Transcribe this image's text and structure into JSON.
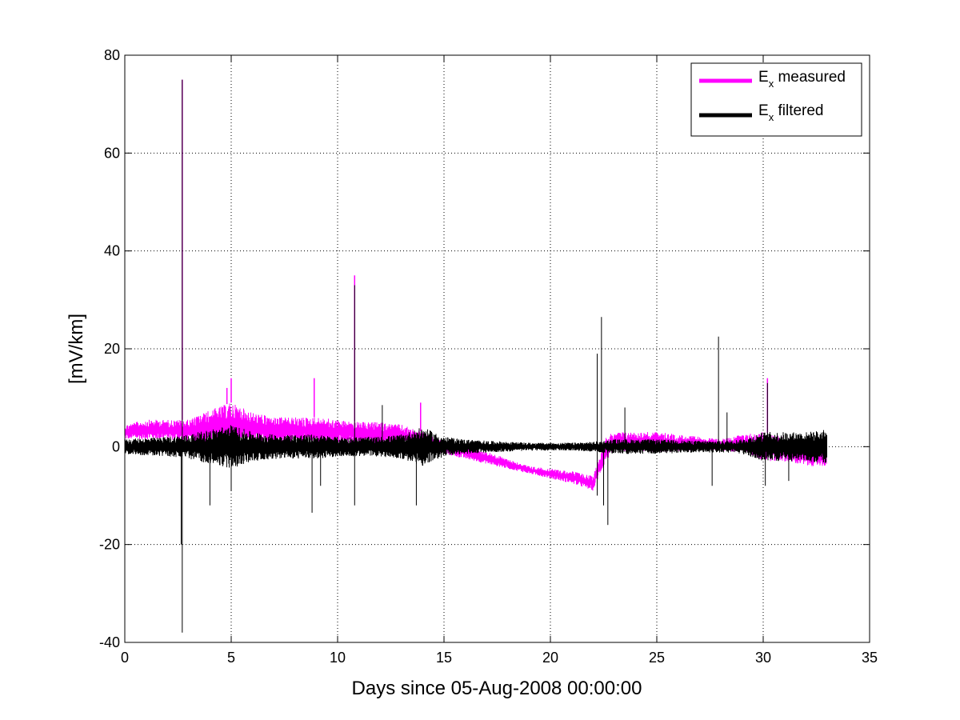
{
  "chart_data": {
    "type": "line",
    "title": "",
    "xlabel": "Days since 05-Aug-2008 00:00:00",
    "ylabel": "[mV/km]",
    "xlim": [
      0,
      35
    ],
    "ylim": [
      -40,
      80
    ],
    "x_ticks": [
      0,
      5,
      10,
      15,
      20,
      25,
      30,
      35
    ],
    "y_ticks": [
      -40,
      -20,
      0,
      20,
      40,
      60,
      80
    ],
    "x_tick_labels": [
      "0",
      "5",
      "10",
      "15",
      "20",
      "25",
      "30",
      "35"
    ],
    "y_tick_labels": [
      "-40",
      "-20",
      "0",
      "20",
      "40",
      "60",
      "80"
    ],
    "grid": true,
    "legend_position": "top-right",
    "colors": {
      "measured": "#ff00ff",
      "filtered": "#000000",
      "grid": "#000000"
    },
    "series": [
      {
        "legend_main": "E",
        "legend_sub": "x",
        "legend_rest": " measured",
        "color": "#ff00ff",
        "x": [
          0,
          1,
          2,
          3,
          4,
          5,
          6,
          7,
          8,
          9,
          10,
          11,
          12,
          13,
          14,
          15,
          16,
          17,
          18,
          19,
          20,
          21,
          22,
          22.6,
          23,
          24,
          25,
          26,
          27,
          28,
          29,
          30,
          31,
          32,
          33
        ],
        "envelope_min": [
          1.5,
          1.5,
          1.5,
          1.0,
          0.5,
          0.5,
          0.5,
          0.5,
          0.5,
          0.5,
          0.5,
          0.5,
          0,
          0,
          -1,
          -1.5,
          -2.5,
          -3.5,
          -4.5,
          -5.5,
          -6.5,
          -7.5,
          -9,
          -3,
          -1,
          -1,
          -1,
          -1,
          -0.5,
          -1,
          -1,
          -3,
          -3,
          -4,
          -4
        ],
        "envelope_max": [
          4.5,
          5.5,
          5.5,
          5.5,
          7.5,
          9,
          7,
          6,
          6,
          6,
          5.5,
          5,
          5,
          4.5,
          3,
          1,
          0,
          -1,
          -2.5,
          -4,
          -4.5,
          -5,
          -6,
          2,
          3,
          3,
          3,
          2.5,
          2,
          1.5,
          2.5,
          3,
          2,
          1,
          1
        ],
        "spikes": [
          [
            2.7,
            75
          ],
          [
            4.8,
            12
          ],
          [
            5.0,
            14
          ],
          [
            8.9,
            14
          ],
          [
            10.8,
            35
          ],
          [
            13.9,
            9
          ],
          [
            30.2,
            14
          ]
        ]
      },
      {
        "legend_main": "E",
        "legend_sub": "x",
        "legend_rest": " filtered",
        "color": "#000000",
        "x": [
          0,
          1,
          2,
          3,
          4,
          5,
          6,
          7,
          8,
          9,
          10,
          11,
          12,
          13,
          14,
          15,
          16,
          17,
          18,
          19,
          20,
          21,
          22,
          23,
          24,
          25,
          26,
          27,
          28,
          29,
          30,
          31,
          32,
          33
        ],
        "amplitude": [
          1.5,
          1.8,
          2.0,
          2.5,
          3.5,
          4.5,
          3.0,
          2.5,
          2.5,
          2.5,
          2.0,
          2.0,
          2.0,
          2.5,
          4.0,
          2.0,
          1.5,
          1.2,
          1.0,
          0.8,
          0.8,
          0.8,
          1.0,
          1.5,
          1.5,
          1.5,
          1.3,
          1.2,
          1.2,
          1.5,
          3.0,
          3.0,
          3.0,
          3.5
        ],
        "spikes": [
          [
            2.7,
            75
          ],
          [
            2.7,
            -38
          ],
          [
            2.65,
            -20
          ],
          [
            4.0,
            -12
          ],
          [
            5.0,
            -9
          ],
          [
            8.8,
            -13.5
          ],
          [
            9.2,
            -8
          ],
          [
            10.8,
            33
          ],
          [
            10.8,
            -12
          ],
          [
            12.1,
            8.5
          ],
          [
            13.7,
            -12
          ],
          [
            22.2,
            19
          ],
          [
            22.2,
            -10
          ],
          [
            22.4,
            26.5
          ],
          [
            22.5,
            -12
          ],
          [
            22.7,
            -16
          ],
          [
            23.5,
            8
          ],
          [
            27.6,
            -8
          ],
          [
            27.9,
            22.5
          ],
          [
            28.3,
            7
          ],
          [
            30.2,
            13
          ],
          [
            30.1,
            -8
          ],
          [
            31.2,
            -7
          ]
        ]
      }
    ]
  }
}
